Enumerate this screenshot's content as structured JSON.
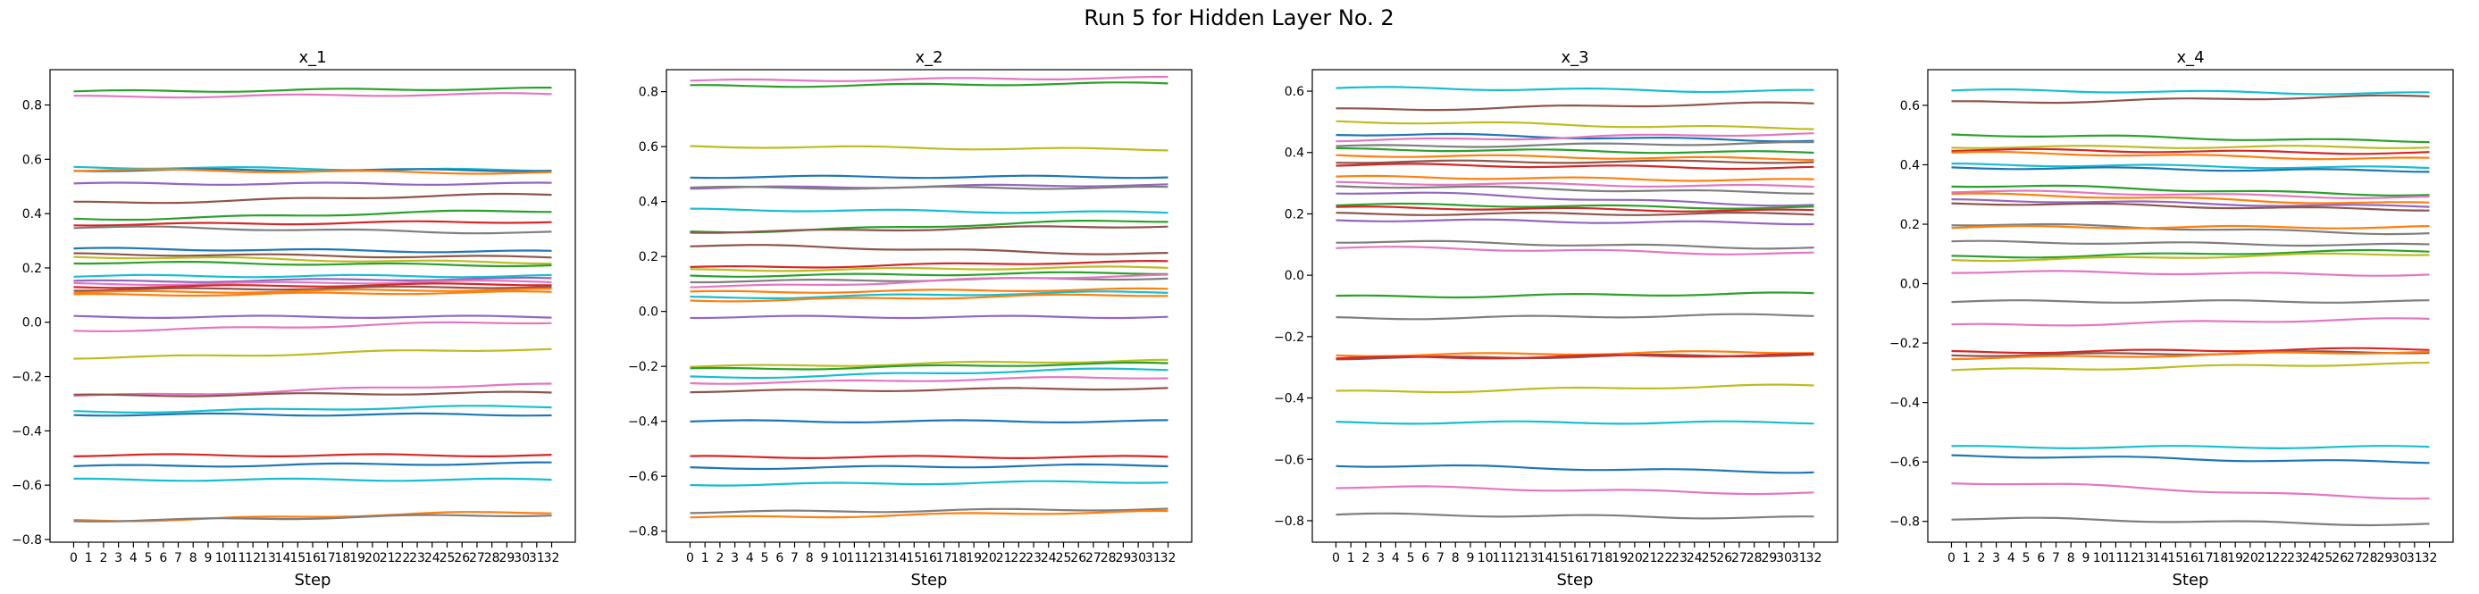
{
  "figure": {
    "title": "Run 5 for Hidden Layer No. 2"
  },
  "palette": [
    "#1f77b4",
    "#ff7f0e",
    "#2ca02c",
    "#d62728",
    "#9467bd",
    "#8c564b",
    "#e377c2",
    "#7f7f7f",
    "#bcbd22",
    "#17becf"
  ],
  "chart_data": [
    {
      "type": "line",
      "title": "x_1",
      "xlabel": "Step",
      "ylabel": "",
      "x_range": [
        0,
        32
      ],
      "ylim": [
        -0.81,
        0.93
      ],
      "yticks": [
        -0.8,
        -0.6,
        -0.4,
        -0.2,
        0.0,
        0.2,
        0.4,
        0.6,
        0.8
      ],
      "grid": false,
      "series": [
        {
          "start": 0.85,
          "end": 0.86,
          "color": "#2ca02c"
        },
        {
          "start": 0.83,
          "end": 0.84,
          "color": "#e377c2"
        },
        {
          "start": 0.57,
          "end": 0.56,
          "color": "#17becf"
        },
        {
          "start": 0.56,
          "end": 0.56,
          "color": "#1f77b4"
        },
        {
          "start": 0.56,
          "end": 0.55,
          "color": "#ff7f0e"
        },
        {
          "start": 0.51,
          "end": 0.51,
          "color": "#9467bd"
        },
        {
          "start": 0.44,
          "end": 0.47,
          "color": "#8c564b"
        },
        {
          "start": 0.38,
          "end": 0.41,
          "color": "#2ca02c"
        },
        {
          "start": 0.36,
          "end": 0.37,
          "color": "#d62728"
        },
        {
          "start": 0.35,
          "end": 0.33,
          "color": "#7f7f7f"
        },
        {
          "start": 0.27,
          "end": 0.26,
          "color": "#1f77b4"
        },
        {
          "start": 0.25,
          "end": 0.24,
          "color": "#8c564b"
        },
        {
          "start": 0.24,
          "end": 0.22,
          "color": "#bcbd22"
        },
        {
          "start": 0.22,
          "end": 0.21,
          "color": "#2ca02c"
        },
        {
          "start": 0.17,
          "end": 0.17,
          "color": "#17becf"
        },
        {
          "start": 0.15,
          "end": 0.16,
          "color": "#9467bd"
        },
        {
          "start": 0.14,
          "end": 0.15,
          "color": "#e377c2"
        },
        {
          "start": 0.13,
          "end": 0.14,
          "color": "#d62728"
        },
        {
          "start": 0.12,
          "end": 0.13,
          "color": "#8c564b"
        },
        {
          "start": 0.11,
          "end": 0.12,
          "color": "#ff7f0e"
        },
        {
          "start": 0.1,
          "end": 0.11,
          "color": "#ff7f0e"
        },
        {
          "start": 0.02,
          "end": 0.02,
          "color": "#9467bd"
        },
        {
          "start": -0.03,
          "end": 0.0,
          "color": "#e377c2"
        },
        {
          "start": -0.13,
          "end": -0.1,
          "color": "#bcbd22"
        },
        {
          "start": -0.27,
          "end": -0.23,
          "color": "#e377c2"
        },
        {
          "start": -0.27,
          "end": -0.26,
          "color": "#8c564b"
        },
        {
          "start": -0.33,
          "end": -0.31,
          "color": "#17becf"
        },
        {
          "start": -0.34,
          "end": -0.34,
          "color": "#1f77b4"
        },
        {
          "start": -0.49,
          "end": -0.49,
          "color": "#d62728"
        },
        {
          "start": -0.53,
          "end": -0.52,
          "color": "#1f77b4"
        },
        {
          "start": -0.58,
          "end": -0.58,
          "color": "#17becf"
        },
        {
          "start": -0.73,
          "end": -0.7,
          "color": "#ff7f0e"
        },
        {
          "start": -0.73,
          "end": -0.71,
          "color": "#7f7f7f"
        }
      ]
    },
    {
      "type": "line",
      "title": "x_2",
      "xlabel": "Step",
      "ylabel": "",
      "x_range": [
        0,
        32
      ],
      "ylim": [
        -0.84,
        0.88
      ],
      "yticks": [
        -0.8,
        -0.6,
        -0.4,
        -0.2,
        0.0,
        0.2,
        0.4,
        0.6,
        0.8
      ],
      "grid": false,
      "series": [
        {
          "start": 0.84,
          "end": 0.85,
          "color": "#e377c2"
        },
        {
          "start": 0.82,
          "end": 0.83,
          "color": "#2ca02c"
        },
        {
          "start": 0.6,
          "end": 0.59,
          "color": "#bcbd22"
        },
        {
          "start": 0.49,
          "end": 0.49,
          "color": "#1f77b4"
        },
        {
          "start": 0.45,
          "end": 0.46,
          "color": "#9467bd"
        },
        {
          "start": 0.45,
          "end": 0.45,
          "color": "#7f7f7f"
        },
        {
          "start": 0.37,
          "end": 0.36,
          "color": "#17becf"
        },
        {
          "start": 0.29,
          "end": 0.33,
          "color": "#2ca02c"
        },
        {
          "start": 0.29,
          "end": 0.31,
          "color": "#8c564b"
        },
        {
          "start": 0.24,
          "end": 0.21,
          "color": "#8c564b"
        },
        {
          "start": 0.16,
          "end": 0.18,
          "color": "#d62728"
        },
        {
          "start": 0.15,
          "end": 0.16,
          "color": "#bcbd22"
        },
        {
          "start": 0.13,
          "end": 0.14,
          "color": "#2ca02c"
        },
        {
          "start": 0.11,
          "end": 0.12,
          "color": "#7f7f7f"
        },
        {
          "start": 0.09,
          "end": 0.13,
          "color": "#e377c2"
        },
        {
          "start": 0.07,
          "end": 0.08,
          "color": "#ff7f0e"
        },
        {
          "start": 0.05,
          "end": 0.07,
          "color": "#17becf"
        },
        {
          "start": 0.04,
          "end": 0.06,
          "color": "#ff7f0e"
        },
        {
          "start": -0.02,
          "end": -0.02,
          "color": "#9467bd"
        },
        {
          "start": -0.2,
          "end": -0.18,
          "color": "#bcbd22"
        },
        {
          "start": -0.21,
          "end": -0.19,
          "color": "#2ca02c"
        },
        {
          "start": -0.24,
          "end": -0.21,
          "color": "#17becf"
        },
        {
          "start": -0.26,
          "end": -0.24,
          "color": "#e377c2"
        },
        {
          "start": -0.29,
          "end": -0.28,
          "color": "#8c564b"
        },
        {
          "start": -0.4,
          "end": -0.4,
          "color": "#1f77b4"
        },
        {
          "start": -0.53,
          "end": -0.53,
          "color": "#d62728"
        },
        {
          "start": -0.57,
          "end": -0.56,
          "color": "#1f77b4"
        },
        {
          "start": -0.63,
          "end": -0.62,
          "color": "#17becf"
        },
        {
          "start": -0.73,
          "end": -0.72,
          "color": "#7f7f7f"
        },
        {
          "start": -0.75,
          "end": -0.73,
          "color": "#ff7f0e"
        }
      ]
    },
    {
      "type": "line",
      "title": "x_3",
      "xlabel": "Step",
      "ylabel": "",
      "x_range": [
        0,
        32
      ],
      "ylim": [
        -0.87,
        0.67
      ],
      "yticks": [
        -0.8,
        -0.6,
        -0.4,
        -0.2,
        0.0,
        0.2,
        0.4,
        0.6
      ],
      "grid": false,
      "series": [
        {
          "start": 0.61,
          "end": 0.6,
          "color": "#17becf"
        },
        {
          "start": 0.54,
          "end": 0.56,
          "color": "#8c564b"
        },
        {
          "start": 0.5,
          "end": 0.48,
          "color": "#bcbd22"
        },
        {
          "start": 0.46,
          "end": 0.44,
          "color": "#1f77b4"
        },
        {
          "start": 0.44,
          "end": 0.46,
          "color": "#e377c2"
        },
        {
          "start": 0.42,
          "end": 0.43,
          "color": "#7f7f7f"
        },
        {
          "start": 0.41,
          "end": 0.4,
          "color": "#2ca02c"
        },
        {
          "start": 0.39,
          "end": 0.38,
          "color": "#ff7f0e"
        },
        {
          "start": 0.37,
          "end": 0.37,
          "color": "#8c564b"
        },
        {
          "start": 0.36,
          "end": 0.35,
          "color": "#d62728"
        },
        {
          "start": 0.32,
          "end": 0.31,
          "color": "#ff7f0e"
        },
        {
          "start": 0.3,
          "end": 0.29,
          "color": "#e377c2"
        },
        {
          "start": 0.29,
          "end": 0.27,
          "color": "#7f7f7f"
        },
        {
          "start": 0.27,
          "end": 0.23,
          "color": "#9467bd"
        },
        {
          "start": 0.23,
          "end": 0.22,
          "color": "#2ca02c"
        },
        {
          "start": 0.22,
          "end": 0.21,
          "color": "#d62728"
        },
        {
          "start": 0.2,
          "end": 0.2,
          "color": "#8c564b"
        },
        {
          "start": 0.18,
          "end": 0.17,
          "color": "#9467bd"
        },
        {
          "start": 0.11,
          "end": 0.09,
          "color": "#7f7f7f"
        },
        {
          "start": 0.09,
          "end": 0.07,
          "color": "#e377c2"
        },
        {
          "start": -0.07,
          "end": -0.06,
          "color": "#2ca02c"
        },
        {
          "start": -0.14,
          "end": -0.13,
          "color": "#7f7f7f"
        },
        {
          "start": -0.26,
          "end": -0.25,
          "color": "#ff7f0e"
        },
        {
          "start": -0.27,
          "end": -0.26,
          "color": "#8c564b"
        },
        {
          "start": -0.27,
          "end": -0.26,
          "color": "#d62728"
        },
        {
          "start": -0.38,
          "end": -0.36,
          "color": "#bcbd22"
        },
        {
          "start": -0.48,
          "end": -0.48,
          "color": "#17becf"
        },
        {
          "start": -0.62,
          "end": -0.64,
          "color": "#1f77b4"
        },
        {
          "start": -0.69,
          "end": -0.71,
          "color": "#e377c2"
        },
        {
          "start": -0.78,
          "end": -0.79,
          "color": "#7f7f7f"
        }
      ]
    },
    {
      "type": "line",
      "title": "x_4",
      "xlabel": "Step",
      "ylabel": "",
      "x_range": [
        0,
        32
      ],
      "ylim": [
        -0.87,
        0.72
      ],
      "yticks": [
        -0.8,
        -0.6,
        -0.4,
        -0.2,
        0.0,
        0.2,
        0.4,
        0.6
      ],
      "grid": false,
      "series": [
        {
          "start": 0.65,
          "end": 0.64,
          "color": "#17becf"
        },
        {
          "start": 0.61,
          "end": 0.63,
          "color": "#8c564b"
        },
        {
          "start": 0.5,
          "end": 0.48,
          "color": "#2ca02c"
        },
        {
          "start": 0.46,
          "end": 0.46,
          "color": "#bcbd22"
        },
        {
          "start": 0.45,
          "end": 0.44,
          "color": "#d62728"
        },
        {
          "start": 0.44,
          "end": 0.42,
          "color": "#ff7f0e"
        },
        {
          "start": 0.4,
          "end": 0.39,
          "color": "#17becf"
        },
        {
          "start": 0.39,
          "end": 0.38,
          "color": "#1f77b4"
        },
        {
          "start": 0.33,
          "end": 0.3,
          "color": "#2ca02c"
        },
        {
          "start": 0.31,
          "end": 0.29,
          "color": "#e377c2"
        },
        {
          "start": 0.3,
          "end": 0.27,
          "color": "#ff7f0e"
        },
        {
          "start": 0.28,
          "end": 0.26,
          "color": "#9467bd"
        },
        {
          "start": 0.27,
          "end": 0.25,
          "color": "#8c564b"
        },
        {
          "start": 0.2,
          "end": 0.17,
          "color": "#7f7f7f"
        },
        {
          "start": 0.19,
          "end": 0.19,
          "color": "#ff7f0e"
        },
        {
          "start": 0.14,
          "end": 0.13,
          "color": "#7f7f7f"
        },
        {
          "start": 0.09,
          "end": 0.11,
          "color": "#2ca02c"
        },
        {
          "start": 0.08,
          "end": 0.1,
          "color": "#bcbd22"
        },
        {
          "start": 0.04,
          "end": 0.03,
          "color": "#e377c2"
        },
        {
          "start": -0.06,
          "end": -0.06,
          "color": "#7f7f7f"
        },
        {
          "start": -0.14,
          "end": -0.12,
          "color": "#e377c2"
        },
        {
          "start": -0.23,
          "end": -0.22,
          "color": "#d62728"
        },
        {
          "start": -0.24,
          "end": -0.23,
          "color": "#8c564b"
        },
        {
          "start": -0.25,
          "end": -0.23,
          "color": "#ff7f0e"
        },
        {
          "start": -0.29,
          "end": -0.27,
          "color": "#bcbd22"
        },
        {
          "start": -0.55,
          "end": -0.55,
          "color": "#17becf"
        },
        {
          "start": -0.58,
          "end": -0.6,
          "color": "#1f77b4"
        },
        {
          "start": -0.67,
          "end": -0.72,
          "color": "#e377c2"
        },
        {
          "start": -0.79,
          "end": -0.81,
          "color": "#7f7f7f"
        }
      ]
    }
  ]
}
